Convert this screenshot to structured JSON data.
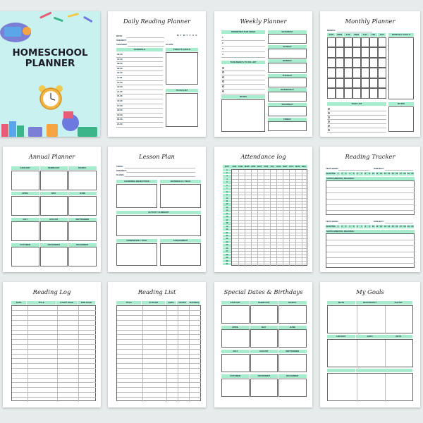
{
  "cover": {
    "title_line1": "HOMESCHOOL",
    "title_line2": "PLANNER"
  },
  "daily": {
    "title": "Daily Reading Planner",
    "date_label": "DATE:",
    "subject_label": "SUBJECT:",
    "teacher_label": "TEACHER:",
    "class_label": "CLASS:",
    "weekdays": [
      "M",
      "T",
      "W",
      "T",
      "F",
      "S",
      "S"
    ],
    "schedule_label": "SCHEDULE",
    "goals_label": "TODAY'S GOALS",
    "todo_label": "TO DO LIST",
    "times": [
      "06.00",
      "07.00",
      "08.00",
      "09.00",
      "10.00",
      "11.00",
      "12.00",
      "13.00",
      "14.00",
      "15.00",
      "16.00",
      "17.00",
      "18.00",
      "19.00",
      "20.00",
      "21.00"
    ]
  },
  "weekly": {
    "title": "Weekly Planner",
    "priorities_label": "PRIORITIES THIS WEEK",
    "priorities": [
      "1",
      "2",
      "3",
      "4"
    ],
    "todo_label": "THIS WEEK'S TO DO LIST",
    "notes_label": "NOTES",
    "days": [
      "SATURDAY",
      "SUNDAY",
      "MONDAY",
      "TUESDAY",
      "WEDNESDAY",
      "THURSDAY",
      "FRIDAY"
    ]
  },
  "monthly": {
    "title": "Monthly Planner",
    "month_label": "MONTH:",
    "days": [
      "SUN",
      "MON",
      "TUE",
      "WED",
      "THU",
      "FRI",
      "SAT"
    ],
    "goals_label": "MONTHLY GOALS",
    "task_label": "TASK LIST",
    "notes_label": "NOTES"
  },
  "annual": {
    "title": "Annual Planner",
    "months": [
      "JANUARY",
      "FEBRUARY",
      "MARCH",
      "APRIL",
      "MAY",
      "JUNE",
      "JULY",
      "AUGUST",
      "SEPTEMBER",
      "OCTOBER",
      "NOVEMBER",
      "DECEMBER"
    ]
  },
  "lesson": {
    "title": "Lesson Plan",
    "topic_label": "TOPIC:",
    "subject_label": "SUBJECT:",
    "class_label": "CLASS:",
    "objectives_label": "LEARNING OBJECTIVES",
    "materials_label": "MATERIALS / TECH",
    "summary_label": "ACTIVITY SUMMARY",
    "homework_label": "HOMEWORK / TASK",
    "assessment_label": "ASSESSMENT"
  },
  "attendance": {
    "title": "Attendance log",
    "day_label": "DAY",
    "months": [
      "JAN",
      "FEB",
      "MAR",
      "APR",
      "MAY",
      "JUN",
      "JUL",
      "AUG",
      "SEP",
      "OCT",
      "NOV",
      "DEC"
    ],
    "days": [
      "1",
      "2",
      "3",
      "4",
      "5",
      "6",
      "7",
      "8",
      "9",
      "10",
      "11",
      "12",
      "13",
      "14",
      "15",
      "16",
      "17",
      "18",
      "19",
      "20",
      "21",
      "22",
      "23",
      "24",
      "25",
      "26",
      "27",
      "28",
      "29",
      "30",
      "31"
    ]
  },
  "tracker": {
    "title": "Reading Tracker",
    "book_label": "TEXT BOOK:",
    "subject_label": "SUBJECT:",
    "chapter_label": "CHAPTER",
    "supplemental_label": "SUPPLEMENTAL READING:",
    "chapters": [
      "1",
      "2",
      "3",
      "4",
      "5",
      "6",
      "7",
      "8",
      "9",
      "10",
      "11",
      "12",
      "13",
      "14",
      "15",
      "16",
      "17",
      "18",
      "19",
      "20"
    ]
  },
  "readlog": {
    "title": "Reading Log",
    "columns": [
      "DATE",
      "TITLE",
      "START PAGE",
      "END PAGE"
    ]
  },
  "readlist": {
    "title": "Reading List",
    "columns": [
      "TITLE",
      "AUTHOR",
      "DATE",
      "PAGES",
      "RATINGS"
    ]
  },
  "special": {
    "title": "Special Dates & Birthdays",
    "months": [
      "JANUARY",
      "FEBRUARY",
      "MARCH",
      "APRIL",
      "MAY",
      "JUNE",
      "JULY",
      "AUGUST",
      "SEPTEMBER",
      "OCTOBER",
      "NOVEMBER",
      "DECEMBER"
    ]
  },
  "goals": {
    "title": "My Goals",
    "subjects": [
      "MATH",
      "GEOGRAPHY",
      "PHYSIC",
      "HISTORY",
      "ARTS",
      "ARTS"
    ]
  },
  "colors": {
    "accent": "#a8ecce",
    "background": "#e6eceb",
    "cover": "#c8f1ef"
  }
}
